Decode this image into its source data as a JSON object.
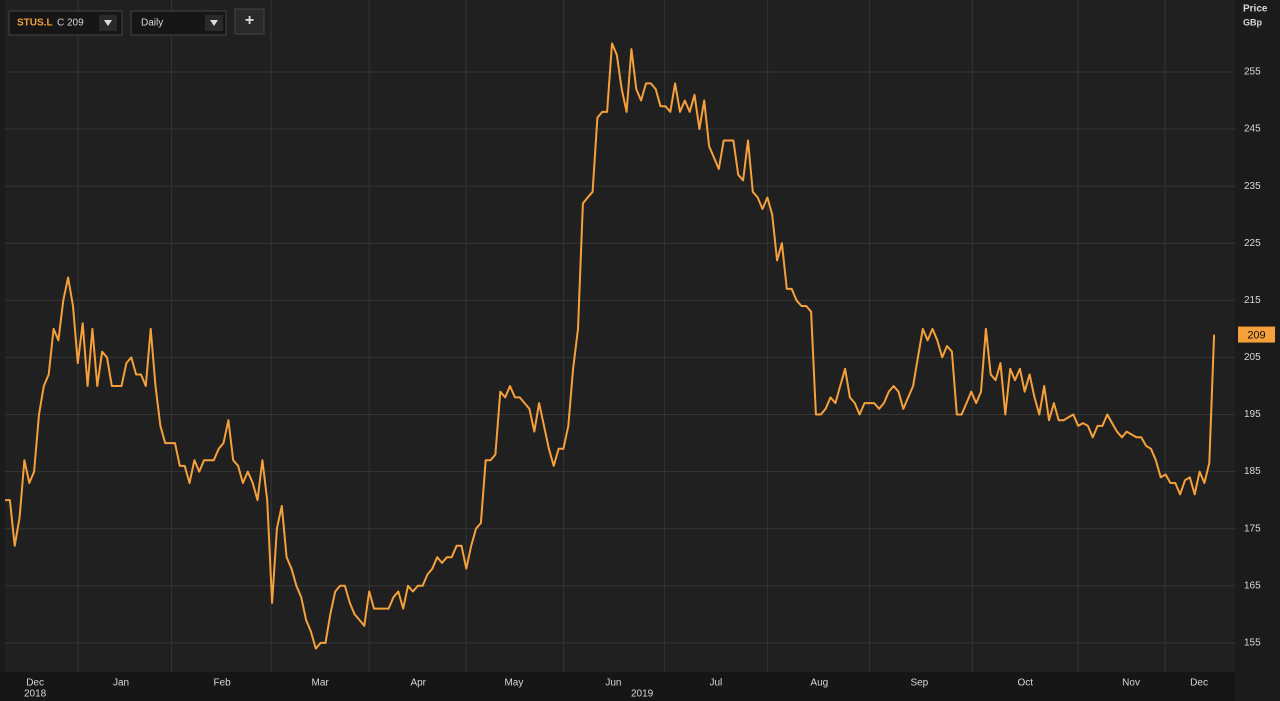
{
  "toolbar": {
    "symbol": "STUS.L",
    "quote": "C 209",
    "interval": "Daily",
    "add_button": "+"
  },
  "chart_data": {
    "type": "line",
    "y_axis_label": "Price",
    "y_axis_unit": "GBp",
    "color": "#f5a03a",
    "values": [
      180,
      180,
      172,
      177,
      187,
      183,
      185,
      195,
      200,
      202,
      210,
      208,
      215,
      219,
      214,
      204,
      211,
      200,
      210,
      200,
      206,
      205,
      200,
      200,
      200,
      204,
      205,
      202,
      202,
      200,
      210,
      200,
      193,
      190,
      190,
      190,
      186,
      186,
      183,
      187,
      185,
      187,
      187,
      187,
      189,
      190,
      194,
      187,
      186,
      183,
      185,
      183,
      180,
      187,
      180,
      162,
      175,
      179,
      170,
      168,
      165,
      163,
      159,
      157,
      154,
      155,
      155,
      160,
      164,
      165,
      165,
      162,
      160,
      159,
      158,
      164,
      161,
      161,
      161,
      161,
      163,
      164,
      161,
      165,
      164,
      165,
      165,
      167,
      168,
      170,
      169,
      170,
      170,
      172,
      172,
      168,
      172,
      175,
      176,
      187,
      187,
      188,
      199,
      198,
      200,
      198,
      198,
      197,
      196,
      192,
      197,
      193,
      189,
      186,
      189,
      189,
      193,
      203,
      210,
      232,
      233,
      234,
      247,
      248,
      248,
      260,
      258,
      252,
      248,
      259,
      252,
      250,
      253,
      253,
      252,
      249,
      249,
      248,
      253,
      248,
      250,
      248,
      251,
      245,
      250,
      242,
      240,
      238,
      243,
      243,
      243,
      237,
      236,
      243,
      234,
      233,
      231,
      233,
      230,
      222,
      225,
      217,
      217,
      215,
      214,
      214,
      213,
      195,
      195,
      196,
      198,
      197,
      200,
      203,
      198,
      197,
      195,
      197,
      197,
      197,
      196,
      197,
      199,
      200,
      199,
      196,
      198,
      200,
      205,
      210,
      208,
      210,
      208,
      205,
      207,
      206,
      195,
      195,
      197,
      199,
      197,
      199,
      210,
      202,
      201,
      204,
      195,
      203,
      201,
      203,
      199,
      202,
      198,
      195,
      200,
      194,
      197,
      194,
      194,
      194.5,
      195,
      193,
      193.5,
      193,
      191,
      193,
      193,
      195,
      193.5,
      192,
      191,
      192,
      191.5,
      191,
      191,
      189.5,
      189,
      187,
      184,
      184.5,
      183,
      183,
      181,
      183.5,
      184,
      181,
      185,
      183,
      186.5,
      209
    ],
    "xlim": [
      0,
      253.3
    ],
    "xticks": [
      {
        "value": 6.2,
        "label": "Dec"
      },
      {
        "value": 23.9,
        "label": "Jan"
      },
      {
        "value": 44.7,
        "label": "Feb"
      },
      {
        "value": 64.9,
        "label": "Mar"
      },
      {
        "value": 85.1,
        "label": "Apr"
      },
      {
        "value": 104.8,
        "label": "May"
      },
      {
        "value": 125.3,
        "label": "Jun"
      },
      {
        "value": 146.4,
        "label": "Jul"
      },
      {
        "value": 167.7,
        "label": "Aug"
      },
      {
        "value": 188.3,
        "label": "Sep"
      },
      {
        "value": 210.1,
        "label": "Oct"
      },
      {
        "value": 231.9,
        "label": "Nov"
      },
      {
        "value": 245.9,
        "label": "Dec"
      }
    ],
    "x_year_labels": [
      {
        "value": 6.2,
        "label": "2018"
      },
      {
        "value": 131.2,
        "label": "2019"
      }
    ],
    "ylim": [
      149.9,
      267.6
    ],
    "yticks": [
      155,
      165,
      175,
      185,
      195,
      205,
      215,
      225,
      235,
      245,
      255
    ],
    "grid": true
  }
}
